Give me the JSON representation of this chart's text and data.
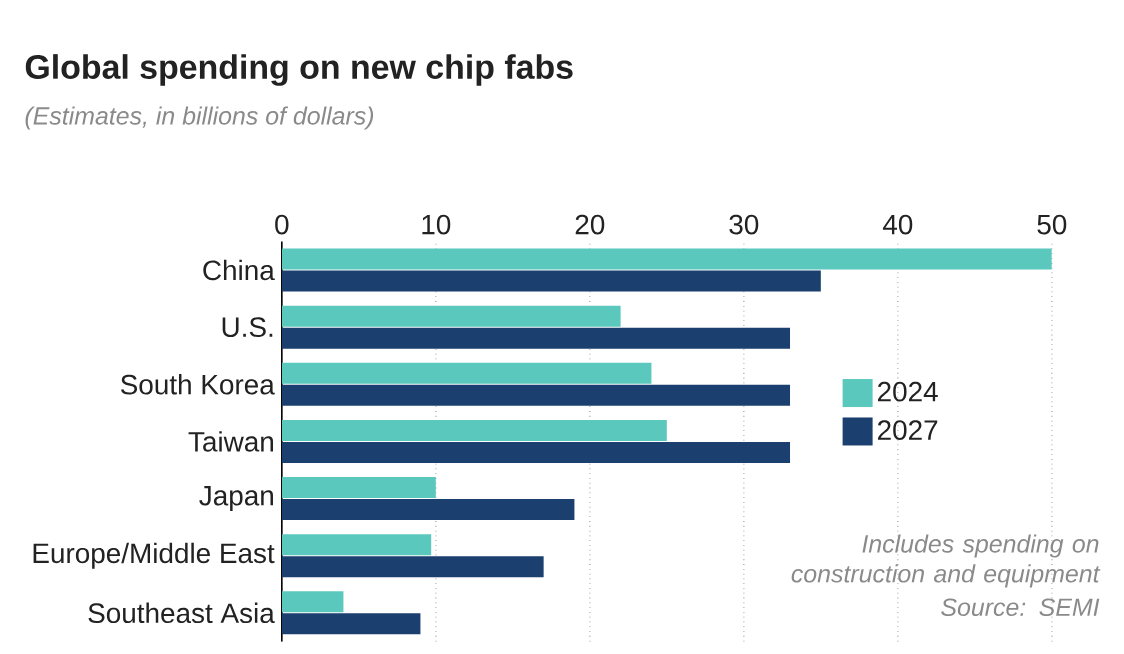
{
  "chart_data": {
    "type": "bar",
    "orientation": "horizontal",
    "title": "Global spending on new chip fabs",
    "subtitle": "(Estimates, in billions of dollars)",
    "categories": [
      "China",
      "U.S.",
      "South Korea",
      "Taiwan",
      "Japan",
      "Europe/Middle East",
      "Southeast Asia"
    ],
    "series": [
      {
        "name": "2024",
        "color": "#5bc8bd",
        "values": [
          50,
          22,
          24,
          25,
          10,
          9.7,
          4
        ]
      },
      {
        "name": "2027",
        "color": "#1b3f6e",
        "values": [
          35,
          33,
          33,
          33,
          19,
          17,
          9
        ]
      }
    ],
    "xlim": [
      0,
      50
    ],
    "xticks": [
      0,
      10,
      20,
      30,
      40,
      50
    ],
    "grid": "x",
    "legend": "right",
    "annotations": [
      "Includes spending on construction and equipment",
      "Source: SEMI"
    ]
  }
}
